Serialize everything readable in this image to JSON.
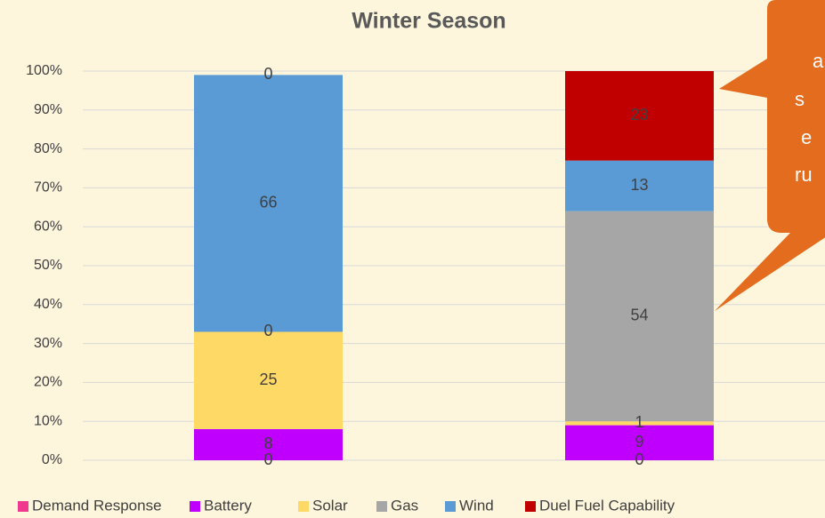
{
  "chart_data": {
    "type": "stacked_bar",
    "title": "Winter Season",
    "categories": [
      null,
      null
    ],
    "series": [
      {
        "name": "Demand Response",
        "color": "#f0388f",
        "values": [
          0,
          0
        ]
      },
      {
        "name": "Battery",
        "color": "#bf00ff",
        "values": [
          8,
          9
        ]
      },
      {
        "name": "Solar",
        "color": "#ffd966",
        "values": [
          25,
          1
        ]
      },
      {
        "name": "Gas",
        "color": "#a6a6a6",
        "values": [
          0,
          54
        ]
      },
      {
        "name": "Wind",
        "color": "#5b9bd5",
        "values": [
          66,
          13
        ]
      },
      {
        "name": "Duel Fuel Capability",
        "color": "#c00000",
        "values": [
          0,
          23
        ]
      }
    ],
    "ylim": [
      0,
      100
    ],
    "yticks": [
      {
        "value": 0,
        "label": "0%"
      },
      {
        "value": 10,
        "label": "10%"
      },
      {
        "value": 20,
        "label": "20%"
      },
      {
        "value": 30,
        "label": "30%"
      },
      {
        "value": 40,
        "label": "40%"
      },
      {
        "value": 50,
        "label": "50%"
      },
      {
        "value": 60,
        "label": "60%"
      },
      {
        "value": 70,
        "label": "70%"
      },
      {
        "value": 80,
        "label": "80%"
      },
      {
        "value": 90,
        "label": "90%"
      },
      {
        "value": 100,
        "label": "100%"
      }
    ],
    "grid": true,
    "legend": "bottom",
    "annotation": [
      "a",
      "s",
      "e",
      "ru"
    ]
  }
}
